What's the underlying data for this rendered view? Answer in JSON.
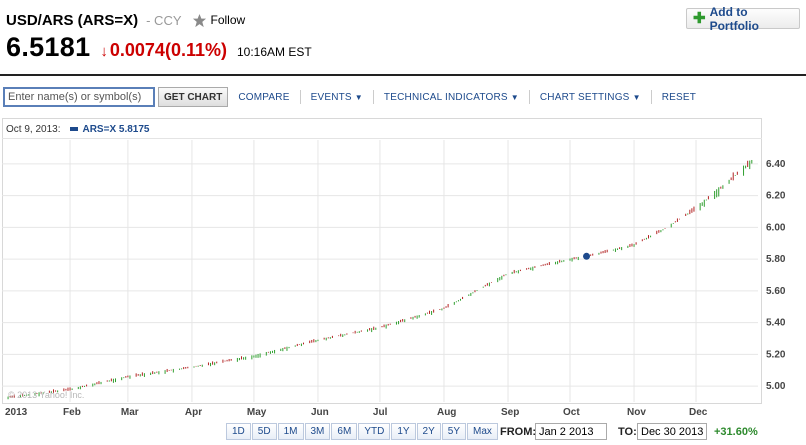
{
  "header": {
    "title": "USD/ARS (ARS=X)",
    "exchange": "- CCY",
    "follow_label": "Follow",
    "add_portfolio_label": "Add to Portfolio"
  },
  "quote": {
    "price": "6.5181",
    "change": "0.0074(0.11%)",
    "time": "10:16AM EST"
  },
  "toolbar": {
    "search_placeholder": "Enter name(s) or symbol(s)",
    "get_chart_label": "GET CHART",
    "compare_label": "COMPARE",
    "events_label": "EVENTS",
    "technical_label": "TECHNICAL INDICATORS",
    "settings_label": "CHART SETTINGS",
    "reset_label": "RESET"
  },
  "chart_header": {
    "date": "Oct 9, 2013:",
    "legend": "ARS=X 5.8175"
  },
  "watermark": "© 2013 Yahoo! Inc.",
  "range_buttons": [
    "1D",
    "5D",
    "1M",
    "3M",
    "6M",
    "YTD",
    "1Y",
    "2Y",
    "5Y",
    "Max"
  ],
  "date_range": {
    "from_label": "FROM:",
    "from_value": "Jan 2 2013",
    "to_label": "TO:",
    "to_value": "Dec 30 2013",
    "change_pct": "+31.60%"
  },
  "colors": {
    "up": "#2e9e2e",
    "down": "#b22222",
    "accent": "#1d4a8c",
    "change_negative": "#cc0000",
    "change_positive": "#2d8a2d"
  },
  "icons": {
    "star": "star-icon",
    "add": "plus-icon",
    "down_arrow": "down-arrow-icon"
  },
  "chart_data": {
    "type": "candlestick",
    "title": "",
    "xlabel": "",
    "ylabel": "",
    "y_ticks": [
      5.0,
      5.2,
      5.4,
      5.6,
      5.8,
      6.0,
      6.2,
      6.4
    ],
    "ylim": [
      4.9,
      6.55
    ],
    "x_ticks": [
      "2013",
      "Feb",
      "Mar",
      "Apr",
      "May",
      "Jun",
      "Jul",
      "Aug",
      "Sep",
      "Oct",
      "Nov",
      "Dec"
    ],
    "x_tick_days": [
      0,
      31,
      59,
      90,
      120,
      151,
      181,
      212,
      243,
      273,
      304,
      334
    ],
    "xlim_days": [
      0,
      364
    ],
    "grid": true,
    "marker": {
      "label": "Oct 9, 2013",
      "day": 281,
      "value": 5.8175
    },
    "series": [
      {
        "name": "ARS=X",
        "points": [
          {
            "day": 1,
            "value": 4.93
          },
          {
            "day": 31,
            "value": 4.98
          },
          {
            "day": 59,
            "value": 5.06
          },
          {
            "day": 90,
            "value": 5.12
          },
          {
            "day": 120,
            "value": 5.19
          },
          {
            "day": 151,
            "value": 5.29
          },
          {
            "day": 181,
            "value": 5.37
          },
          {
            "day": 212,
            "value": 5.49
          },
          {
            "day": 243,
            "value": 5.71
          },
          {
            "day": 273,
            "value": 5.8
          },
          {
            "day": 281,
            "value": 5.8175
          },
          {
            "day": 304,
            "value": 5.89
          },
          {
            "day": 320,
            "value": 6.0
          },
          {
            "day": 334,
            "value": 6.12
          },
          {
            "day": 348,
            "value": 6.27
          },
          {
            "day": 362,
            "value": 6.43
          }
        ]
      }
    ]
  }
}
